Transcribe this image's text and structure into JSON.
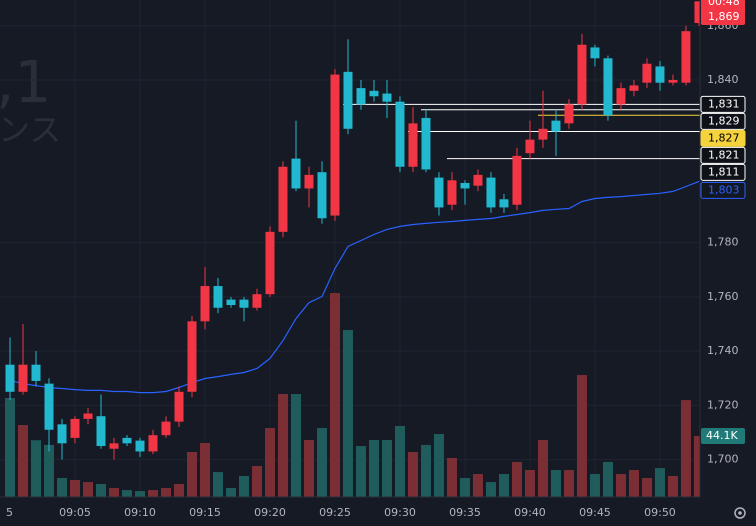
{
  "chart_data": {
    "type": "candlestick",
    "watermark": [
      ",1",
      "ンス"
    ],
    "edge_label": "5",
    "countdown": "00:48",
    "x": [
      0,
      1,
      2,
      3,
      4,
      5,
      6,
      7,
      8,
      9,
      10,
      11,
      12,
      13,
      14,
      15,
      16,
      17,
      18,
      19,
      20,
      21,
      22,
      23,
      24,
      25,
      26,
      27,
      28,
      29,
      30,
      31,
      32,
      33,
      34,
      35,
      36,
      37,
      38,
      39,
      40,
      41,
      42,
      43,
      44,
      45,
      46,
      47,
      48,
      49,
      50,
      51,
      52,
      53
    ],
    "open": [
      1735,
      1725,
      1735,
      1728,
      1713,
      1708,
      1715,
      1716,
      1704,
      1708,
      1707,
      1703,
      1709,
      1714,
      1725,
      1751,
      1764,
      1759,
      1759,
      1756,
      1761,
      1784,
      1811,
      1800,
      1806,
      1790,
      1843,
      1837,
      1836,
      1835,
      1832,
      1808,
      1826,
      1804,
      1794,
      1802,
      1801,
      1804,
      1796,
      1794,
      1813,
      1818,
      1825,
      1824,
      1831,
      1852,
      1848,
      1831,
      1836,
      1839,
      1845,
      1839,
      1839,
      1861
    ],
    "high": [
      1745,
      1750,
      1740,
      1730,
      1715,
      1716,
      1719,
      1724,
      1708,
      1709,
      1708,
      1711,
      1716,
      1727,
      1753,
      1771,
      1767,
      1760,
      1760,
      1763,
      1786,
      1810,
      1825,
      1808,
      1810,
      1844,
      1855,
      1840,
      1840,
      1840,
      1834,
      1830,
      1829,
      1806,
      1806,
      1803,
      1807,
      1806,
      1798,
      1815,
      1825,
      1836,
      1829,
      1833,
      1857,
      1853,
      1849,
      1839,
      1840,
      1848,
      1847,
      1842,
      1860,
      1869
    ],
    "low": [
      1722,
      1724,
      1727,
      1703,
      1700,
      1706,
      1713,
      1704,
      1700,
      1705,
      1701,
      1702,
      1708,
      1712,
      1723,
      1748,
      1754,
      1756,
      1751,
      1755,
      1760,
      1782,
      1799,
      1793,
      1787,
      1788,
      1820,
      1829,
      1832,
      1826,
      1806,
      1806,
      1806,
      1790,
      1792,
      1794,
      1799,
      1791,
      1791,
      1792,
      1811,
      1815,
      1812,
      1822,
      1829,
      1845,
      1825,
      1829,
      1834,
      1837,
      1836,
      1838,
      1838,
      1860
    ],
    "close": [
      1725,
      1735,
      1729,
      1711,
      1706,
      1715,
      1717,
      1705,
      1706,
      1706,
      1703,
      1709,
      1714,
      1725,
      1751,
      1764,
      1756,
      1757,
      1756,
      1761,
      1784,
      1808,
      1800,
      1805,
      1789,
      1842,
      1822,
      1831,
      1834,
      1832,
      1808,
      1824,
      1807,
      1793,
      1803,
      1800,
      1805,
      1793,
      1793,
      1812,
      1818,
      1822,
      1821,
      1831,
      1853,
      1848,
      1827,
      1837,
      1838,
      1846,
      1839,
      1840,
      1858,
      1869
    ],
    "close_value_labels": [
      null,
      null,
      null,
      null,
      null,
      null,
      null,
      null,
      null,
      null,
      null,
      null,
      null,
      null,
      null,
      null,
      null,
      null,
      null,
      null,
      null,
      null,
      null,
      null,
      null,
      null,
      null,
      null,
      null,
      null,
      null,
      null,
      null,
      null,
      null,
      null,
      null,
      null,
      null,
      null,
      null,
      null,
      null,
      null,
      null,
      null,
      null,
      null,
      null,
      null,
      null,
      null,
      null,
      "1,869"
    ],
    "up_color": "#f23645",
    "down_color": "#22b8cf",
    "volume": {
      "up_color": "#7b2f35",
      "down_color": "#1f5c5b",
      "label_color": "#1f7a78",
      "values": [
        71.5,
        52,
        41,
        37.6,
        13.7,
        12.3,
        10.8,
        9.4,
        6.5,
        5,
        4.3,
        5,
        6.5,
        9.4,
        32.5,
        39,
        18,
        6.5,
        15.2,
        22.4,
        49.8,
        74.4,
        74.4,
        41.2,
        49.8,
        147.3,
        120.6,
        36.8,
        41.2,
        41.2,
        51.3,
        32.5,
        37.6,
        45.5,
        28.2,
        13.7,
        16.6,
        10.8,
        16.6,
        25.3,
        19.5,
        41.2,
        19.5,
        19.5,
        88.1,
        16.6,
        25.3,
        16.6,
        19.5,
        13.7,
        20.9,
        15.2,
        70,
        44.1
      ],
      "value_labels": [
        null,
        null,
        null,
        null,
        null,
        null,
        null,
        null,
        null,
        null,
        null,
        null,
        null,
        null,
        null,
        null,
        null,
        null,
        null,
        null,
        null,
        null,
        null,
        null,
        null,
        null,
        null,
        null,
        null,
        null,
        null,
        null,
        null,
        null,
        null,
        null,
        null,
        null,
        null,
        null,
        null,
        null,
        null,
        null,
        null,
        null,
        null,
        null,
        null,
        null,
        null,
        null,
        null,
        "44.1K"
      ],
      "ylim": [
        0,
        359
      ]
    },
    "ma": {
      "color": "#2962ff",
      "values": [
        1729.2,
        1728,
        1727.3,
        1726.6,
        1726.2,
        1725.8,
        1725.5,
        1725.5,
        1725.1,
        1725.1,
        1724.7,
        1724.7,
        1725.1,
        1726.6,
        1728.4,
        1729.9,
        1730.6,
        1731.4,
        1732.1,
        1733.6,
        1737.3,
        1743.9,
        1752,
        1757.9,
        1760.1,
        1770.5,
        1778.6,
        1780.8,
        1783,
        1784.9,
        1786,
        1786.7,
        1787.1,
        1787.5,
        1787.8,
        1788.2,
        1788.6,
        1788.9,
        1789.7,
        1790.4,
        1791.1,
        1791.9,
        1792.3,
        1792.6,
        1795.2,
        1796.3,
        1796.7,
        1797,
        1797.4,
        1797.8,
        1798.2,
        1798.9,
        1800.7,
        1802.6
      ],
      "value_labels": [
        null,
        null,
        null,
        null,
        null,
        null,
        null,
        null,
        null,
        null,
        null,
        null,
        null,
        null,
        null,
        null,
        null,
        null,
        null,
        null,
        null,
        null,
        null,
        null,
        null,
        null,
        null,
        null,
        null,
        null,
        null,
        null,
        null,
        null,
        null,
        null,
        null,
        null,
        null,
        null,
        null,
        null,
        null,
        null,
        null,
        null,
        null,
        null,
        null,
        null,
        null,
        null,
        null,
        "1,803"
      ]
    },
    "levels": [
      {
        "value": 1831,
        "label": "1,831",
        "start": 26,
        "color": "#ffffff"
      },
      {
        "value": 1829,
        "label": "1,829",
        "start": 32,
        "color": "#ffffff"
      },
      {
        "value": 1827,
        "label": "1,827",
        "start": 41,
        "color": "#f5d33d"
      },
      {
        "value": 1821,
        "label": "1,821",
        "start": 31,
        "color": "#ffffff"
      },
      {
        "value": 1811,
        "label": "1,811",
        "start": 34,
        "color": "#ffffff"
      }
    ],
    "xlim": [
      -0.77,
      53.08
    ],
    "xticks": [
      {
        "value": 5,
        "label": "09:05"
      },
      {
        "value": 10,
        "label": "09:10"
      },
      {
        "value": 15,
        "label": "09:15"
      },
      {
        "value": 20,
        "label": "09:20"
      },
      {
        "value": 25,
        "label": "09:25"
      },
      {
        "value": 30,
        "label": "09:30"
      },
      {
        "value": 35,
        "label": "09:35"
      },
      {
        "value": 40,
        "label": "09:40"
      },
      {
        "value": 45,
        "label": "09:45"
      },
      {
        "value": 50,
        "label": "09:50"
      }
    ],
    "ylim": [
      1686.2,
      1869.5
    ],
    "yticks": [
      {
        "value": 1700,
        "label": "1,700"
      },
      {
        "value": 1720,
        "label": "1,720"
      },
      {
        "value": 1740,
        "label": "1,740"
      },
      {
        "value": 1760,
        "label": "1,760"
      },
      {
        "value": 1780,
        "label": "1,780"
      },
      {
        "value": 1840,
        "label": "1,840"
      },
      {
        "value": 1860,
        "label": "1,860"
      }
    ],
    "grid": true
  }
}
